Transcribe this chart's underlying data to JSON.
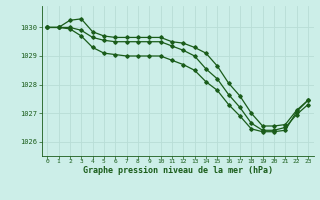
{
  "title": "Graphe pression niveau de la mer (hPa)",
  "background_color": "#cceee8",
  "grid_color": "#b8ddd6",
  "line_color": "#1a5c1a",
  "xlim": [
    -0.5,
    23.5
  ],
  "ylim": [
    1025.5,
    1030.75
  ],
  "yticks": [
    1026,
    1027,
    1028,
    1029,
    1030
  ],
  "xticks": [
    0,
    1,
    2,
    3,
    4,
    5,
    6,
    7,
    8,
    9,
    10,
    11,
    12,
    13,
    14,
    15,
    16,
    17,
    18,
    19,
    20,
    21,
    22,
    23
  ],
  "series": [
    [
      1030.0,
      1030.0,
      1030.25,
      1030.3,
      1029.85,
      1029.7,
      1029.65,
      1029.65,
      1029.65,
      1029.65,
      1029.65,
      1029.5,
      1029.45,
      1029.3,
      1029.1,
      1028.65,
      1028.05,
      1027.6,
      1027.0,
      1026.55,
      1026.55,
      1026.6,
      1027.1,
      1027.45
    ],
    [
      1030.0,
      1030.0,
      1030.0,
      1029.9,
      1029.65,
      1029.55,
      1029.5,
      1029.5,
      1029.5,
      1029.5,
      1029.5,
      1029.35,
      1029.2,
      1029.0,
      1028.55,
      1028.2,
      1027.65,
      1027.2,
      1026.65,
      1026.4,
      1026.4,
      1026.5,
      1026.95,
      1027.3
    ],
    [
      1030.0,
      1030.0,
      1029.95,
      1029.7,
      1029.3,
      1029.1,
      1029.05,
      1029.0,
      1029.0,
      1029.0,
      1029.0,
      1028.85,
      1028.7,
      1028.5,
      1028.1,
      1027.8,
      1027.3,
      1026.9,
      1026.45,
      1026.35,
      1026.35,
      1026.4,
      1027.05,
      1027.45
    ]
  ]
}
